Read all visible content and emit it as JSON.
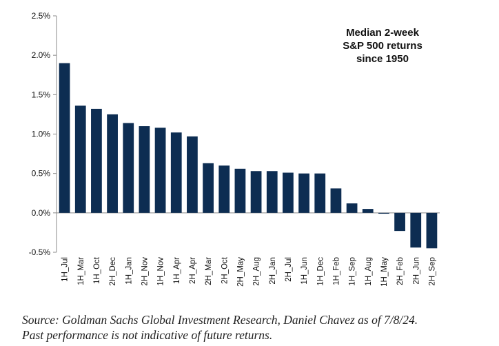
{
  "chart_data": {
    "type": "bar",
    "title_lines": [
      "Median 2-week",
      "S&P 500 returns",
      "since 1950"
    ],
    "xlabel": "",
    "ylabel": "",
    "ylim": [
      -0.5,
      2.5
    ],
    "yticks": [
      -0.5,
      0.0,
      0.5,
      1.0,
      1.5,
      2.0,
      2.5
    ],
    "ytick_labels": [
      "-0.5%",
      "0.0%",
      "0.5%",
      "1.0%",
      "1.5%",
      "2.0%",
      "2.5%"
    ],
    "grid": false,
    "bar_color": "#0d2d52",
    "categories": [
      "1H_Jul",
      "1H_Mar",
      "1H_Oct",
      "2H_Dec",
      "1H_Jan",
      "2H_Nov",
      "1H_Nov",
      "1H_Apr",
      "2H_Apr",
      "2H_Mar",
      "2H_Oct",
      "2H_May",
      "2H_Aug",
      "2H_Jan",
      "2H_Jul",
      "1H_Jun",
      "1H_Dec",
      "1H_Feb",
      "1H_Sep",
      "1H_Aug",
      "1H_May",
      "2H_Feb",
      "2H_Jun",
      "2H_Sep"
    ],
    "values": [
      1.9,
      1.36,
      1.32,
      1.25,
      1.14,
      1.1,
      1.08,
      1.02,
      0.97,
      0.63,
      0.6,
      0.56,
      0.53,
      0.53,
      0.51,
      0.5,
      0.5,
      0.31,
      0.12,
      0.05,
      -0.01,
      -0.23,
      -0.44,
      -0.45
    ]
  },
  "source": {
    "line1": "Source: Goldman Sachs Global Investment Research, Daniel Chavez  as of 7/8/24.",
    "line2": "Past performance is not indicative of future returns."
  }
}
